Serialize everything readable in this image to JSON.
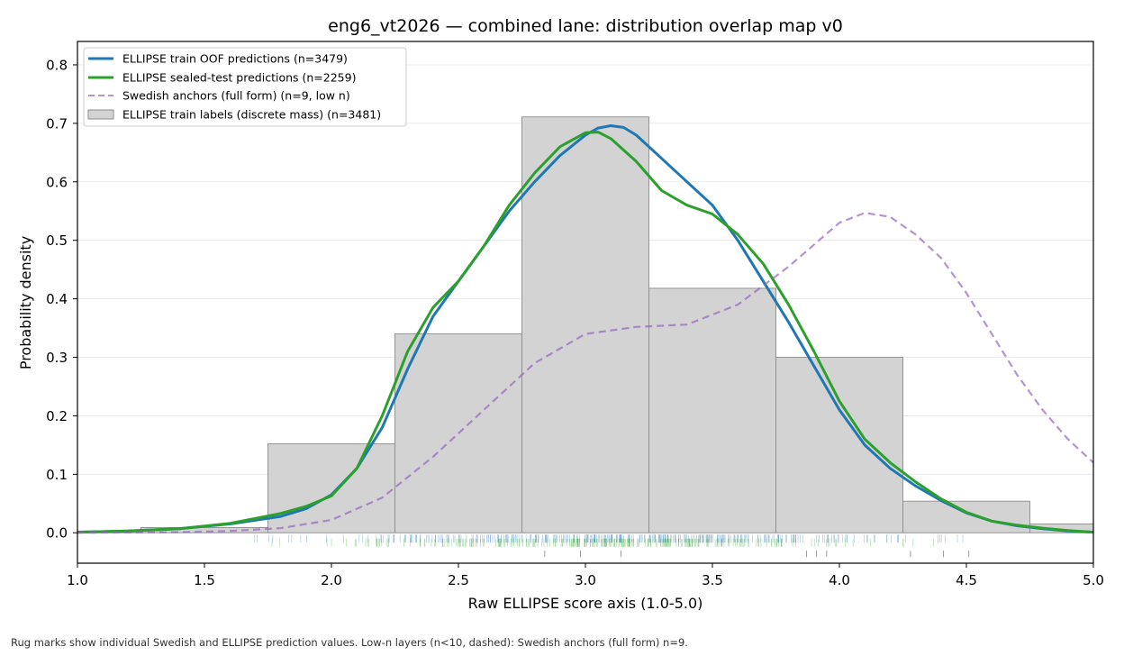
{
  "chart_data": {
    "type": "area",
    "title": "eng6_vt2026 — combined lane: distribution overlap map v0",
    "xlabel": "Raw ELLIPSE score axis (1.0-5.0)",
    "ylabel": "Probability density",
    "xlim": [
      1.0,
      5.0
    ],
    "ylim": [
      -0.052,
      0.84
    ],
    "grid": "horizontal",
    "legend_position": "top-left",
    "x_ticks": [
      "1.0",
      "1.5",
      "2.0",
      "2.5",
      "3.0",
      "3.5",
      "4.0",
      "4.5",
      "5.0"
    ],
    "y_ticks": [
      "0.0",
      "0.1",
      "0.2",
      "0.3",
      "0.4",
      "0.5",
      "0.6",
      "0.7",
      "0.8"
    ],
    "histogram": {
      "name": "ELLIPSE train labels (discrete mass) (n=3481)",
      "color": "#d3d3d3",
      "edge_color": "#8c8c8c",
      "bins": [
        {
          "x0": 1.0,
          "x1": 1.25,
          "value": 0.003
        },
        {
          "x0": 1.25,
          "x1": 1.75,
          "value": 0.009
        },
        {
          "x0": 1.75,
          "x1": 2.25,
          "value": 0.152
        },
        {
          "x0": 2.25,
          "x1": 2.75,
          "value": 0.34
        },
        {
          "x0": 2.75,
          "x1": 3.25,
          "value": 0.711
        },
        {
          "x0": 3.25,
          "x1": 3.75,
          "value": 0.418
        },
        {
          "x0": 3.75,
          "x1": 4.25,
          "value": 0.3
        },
        {
          "x0": 4.25,
          "x1": 4.75,
          "value": 0.054
        },
        {
          "x0": 4.75,
          "x1": 5.0,
          "value": 0.015
        }
      ]
    },
    "series": [
      {
        "name": "ELLIPSE train OOF predictions (n=3479)",
        "color": "#1f77b4",
        "style": "solid",
        "x": [
          1.0,
          1.2,
          1.4,
          1.6,
          1.8,
          1.9,
          2.0,
          2.1,
          2.2,
          2.3,
          2.4,
          2.5,
          2.6,
          2.7,
          2.8,
          2.9,
          3.0,
          3.05,
          3.1,
          3.15,
          3.2,
          3.3,
          3.4,
          3.5,
          3.6,
          3.7,
          3.8,
          3.9,
          4.0,
          4.1,
          4.2,
          4.3,
          4.4,
          4.5,
          4.6,
          4.7,
          4.8,
          4.9,
          5.0
        ],
        "y": [
          0.001,
          0.003,
          0.007,
          0.015,
          0.028,
          0.041,
          0.065,
          0.11,
          0.18,
          0.28,
          0.37,
          0.43,
          0.49,
          0.55,
          0.6,
          0.645,
          0.68,
          0.692,
          0.696,
          0.693,
          0.68,
          0.64,
          0.6,
          0.56,
          0.5,
          0.43,
          0.36,
          0.285,
          0.21,
          0.15,
          0.11,
          0.08,
          0.055,
          0.034,
          0.02,
          0.012,
          0.007,
          0.003,
          0.001
        ]
      },
      {
        "name": "ELLIPSE sealed-test predictions (n=2259)",
        "color": "#2ca02c",
        "style": "solid",
        "x": [
          1.0,
          1.2,
          1.4,
          1.6,
          1.8,
          1.9,
          2.0,
          2.1,
          2.2,
          2.3,
          2.4,
          2.5,
          2.6,
          2.7,
          2.8,
          2.9,
          3.0,
          3.05,
          3.1,
          3.2,
          3.3,
          3.4,
          3.5,
          3.6,
          3.7,
          3.8,
          3.9,
          4.0,
          4.1,
          4.2,
          4.3,
          4.4,
          4.5,
          4.6,
          4.7,
          4.8,
          4.9,
          5.0
        ],
        "y": [
          0.001,
          0.003,
          0.007,
          0.016,
          0.033,
          0.045,
          0.063,
          0.11,
          0.2,
          0.31,
          0.385,
          0.43,
          0.49,
          0.56,
          0.615,
          0.66,
          0.684,
          0.685,
          0.674,
          0.635,
          0.585,
          0.56,
          0.545,
          0.51,
          0.46,
          0.39,
          0.31,
          0.225,
          0.16,
          0.12,
          0.087,
          0.058,
          0.035,
          0.02,
          0.013,
          0.008,
          0.004,
          0.001
        ]
      },
      {
        "name": "Swedish anchors (full form) (n=9, low n)",
        "color": "#9467bd",
        "style": "dashed",
        "x": [
          1.0,
          1.4,
          1.6,
          1.8,
          2.0,
          2.2,
          2.4,
          2.6,
          2.8,
          3.0,
          3.2,
          3.4,
          3.6,
          3.8,
          4.0,
          4.1,
          4.2,
          4.3,
          4.4,
          4.5,
          4.6,
          4.7,
          4.8,
          4.9,
          5.0
        ],
        "y": [
          0.0,
          0.001,
          0.003,
          0.008,
          0.022,
          0.06,
          0.13,
          0.21,
          0.29,
          0.34,
          0.352,
          0.356,
          0.39,
          0.455,
          0.53,
          0.547,
          0.54,
          0.51,
          0.47,
          0.41,
          0.34,
          0.27,
          0.21,
          0.16,
          0.12
        ]
      }
    ],
    "rugs": [
      {
        "name": "ELLIPSE train OOF predictions",
        "color": "#1f77b4",
        "y_offset": -0.01,
        "x_range": [
          1.55,
          4.85
        ],
        "count": 340
      },
      {
        "name": "ELLIPSE sealed-test predictions",
        "color": "#2ca02c",
        "y_offset": -0.017,
        "x_range": [
          1.42,
          4.55
        ],
        "count": 260
      },
      {
        "name": "Swedish anchors (full form)",
        "color": "#333333",
        "y_offset": -0.036,
        "x": [
          2.84,
          2.98,
          3.14,
          3.87,
          3.91,
          3.95,
          4.28,
          4.41,
          4.51
        ]
      }
    ],
    "footnote": "Rug marks show individual Swedish and ELLIPSE prediction values. Low-n layers (n<10, dashed): Swedish anchors (full form) n=9."
  }
}
